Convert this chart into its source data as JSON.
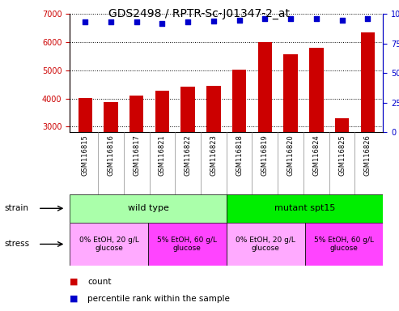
{
  "title": "GDS2498 / RPTR-Sc-J01347-2_at",
  "samples": [
    "GSM116815",
    "GSM116816",
    "GSM116817",
    "GSM116821",
    "GSM116822",
    "GSM116823",
    "GSM116818",
    "GSM116819",
    "GSM116820",
    "GSM116824",
    "GSM116825",
    "GSM116826"
  ],
  "counts": [
    4020,
    3880,
    4110,
    4260,
    4420,
    4450,
    5020,
    6010,
    5580,
    5800,
    3290,
    6340
  ],
  "percentile_ranks": [
    93,
    93,
    93,
    92,
    93,
    94,
    95,
    96,
    96,
    96,
    95,
    96
  ],
  "bar_color": "#CC0000",
  "dot_color": "#0000CC",
  "ylim_left": [
    2800,
    7000
  ],
  "ylim_right": [
    0,
    100
  ],
  "yticks_left": [
    3000,
    4000,
    5000,
    6000,
    7000
  ],
  "yticks_right": [
    0,
    25,
    50,
    75,
    100
  ],
  "strain_labels": [
    {
      "text": "wild type",
      "start": 0,
      "end": 6,
      "color": "#AAFFAA"
    },
    {
      "text": "mutant spt15",
      "start": 6,
      "end": 12,
      "color": "#00EE00"
    }
  ],
  "stress_labels": [
    {
      "text": "0% EtOH, 20 g/L\nglucose",
      "start": 0,
      "end": 3,
      "color": "#FFAAFF"
    },
    {
      "text": "5% EtOH, 60 g/L\nglucose",
      "start": 3,
      "end": 6,
      "color": "#FF44FF"
    },
    {
      "text": "0% EtOH, 20 g/L\nglucose",
      "start": 6,
      "end": 9,
      "color": "#FFAAFF"
    },
    {
      "text": "5% EtOH, 60 g/L\nglucose",
      "start": 9,
      "end": 12,
      "color": "#FF44FF"
    }
  ],
  "legend_count_color": "#CC0000",
  "legend_percentile_color": "#0000CC",
  "bar_color_tick": "#CC0000",
  "right_tick_color": "#0000CC",
  "title_fontsize": 10,
  "tick_fontsize": 7,
  "label_fontsize": 6,
  "bar_width": 0.55
}
